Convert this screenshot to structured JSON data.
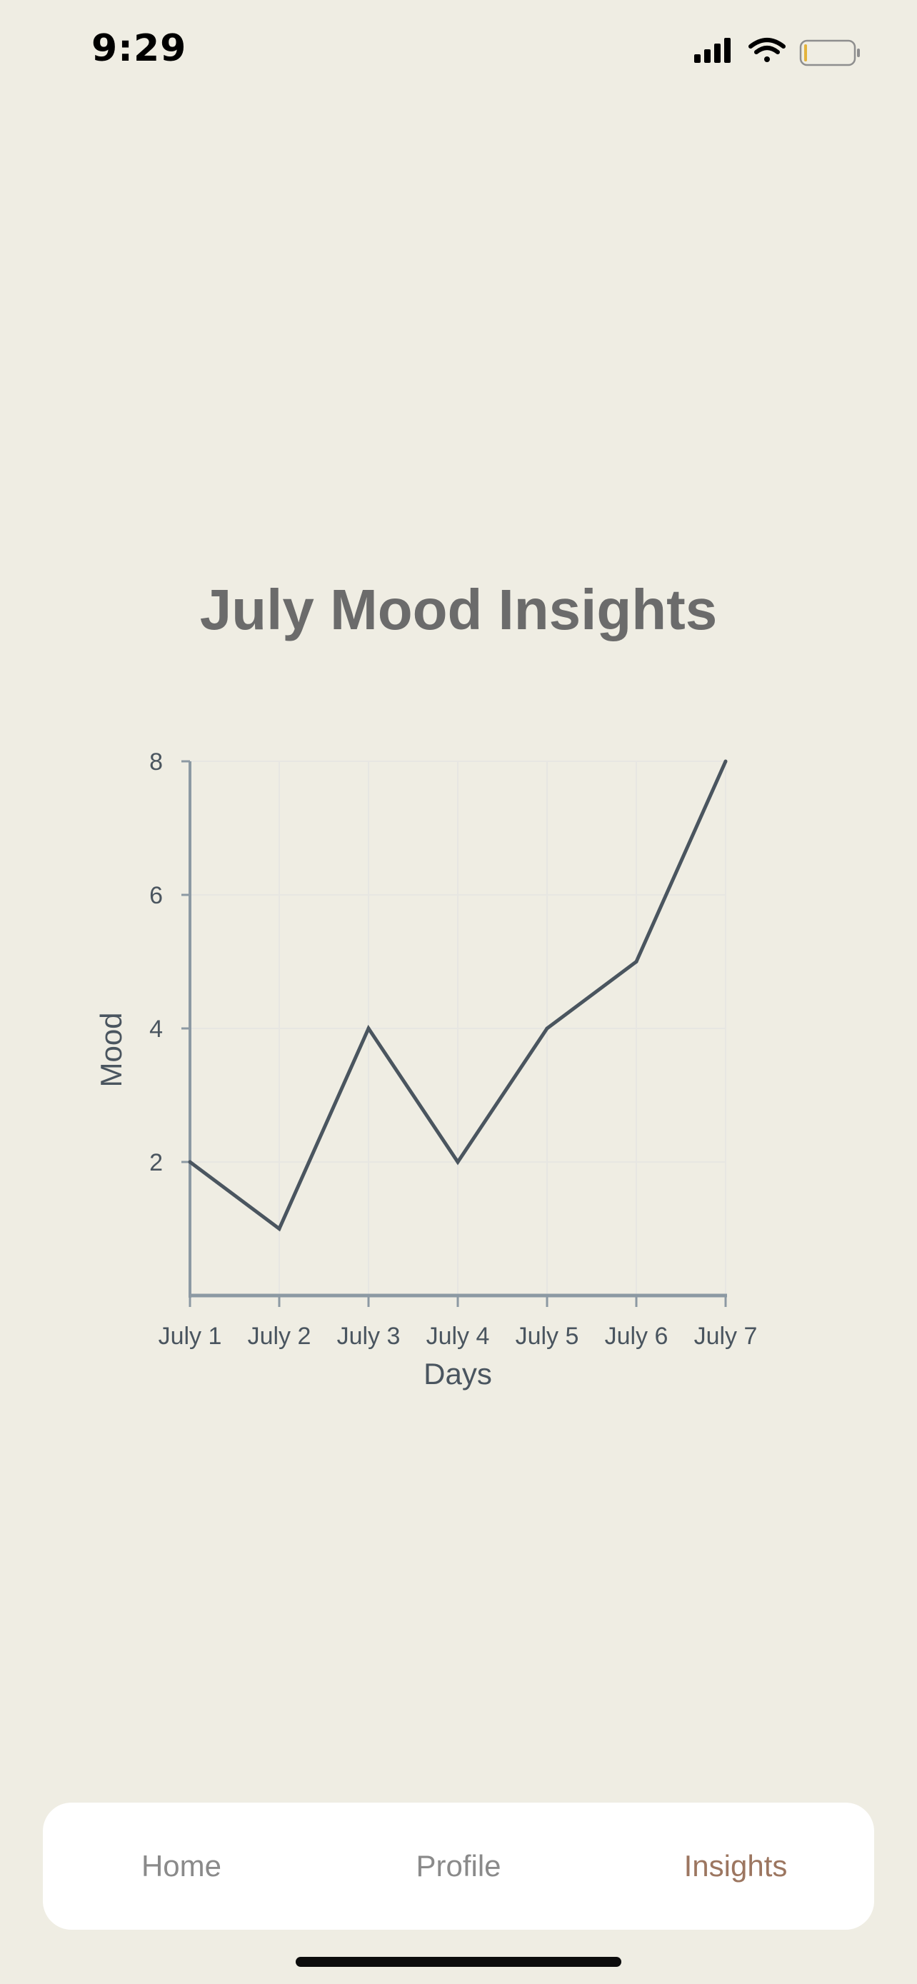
{
  "status_bar": {
    "time": "9:29",
    "icons": [
      "cellular-signal-icon",
      "wifi-icon",
      "battery-icon"
    ]
  },
  "page": {
    "title": "July Mood Insights"
  },
  "chart_data": {
    "type": "line",
    "title": "July Mood Insights",
    "xlabel": "Days",
    "ylabel": "Mood",
    "categories": [
      "July 1",
      "July 2",
      "July 3",
      "July 4",
      "July 5",
      "July 6",
      "July 7"
    ],
    "series": [
      {
        "values": [
          2,
          1,
          4,
          2,
          4,
          5,
          8
        ]
      }
    ],
    "yticks": [
      2,
      4,
      6,
      8
    ],
    "ylim": [
      0,
      8
    ],
    "grid": true,
    "legend": "none",
    "line_color": "#4a555f",
    "axis_color": "#8c99a3"
  },
  "tab_bar": {
    "tabs": [
      {
        "label": "Home",
        "active": false
      },
      {
        "label": "Profile",
        "active": false
      },
      {
        "label": "Insights",
        "active": true
      }
    ]
  },
  "colors": {
    "background": "#efede3",
    "title": "#6b6b6b",
    "tab_inactive": "#8a8a8a",
    "tab_active": "#9c7660"
  }
}
